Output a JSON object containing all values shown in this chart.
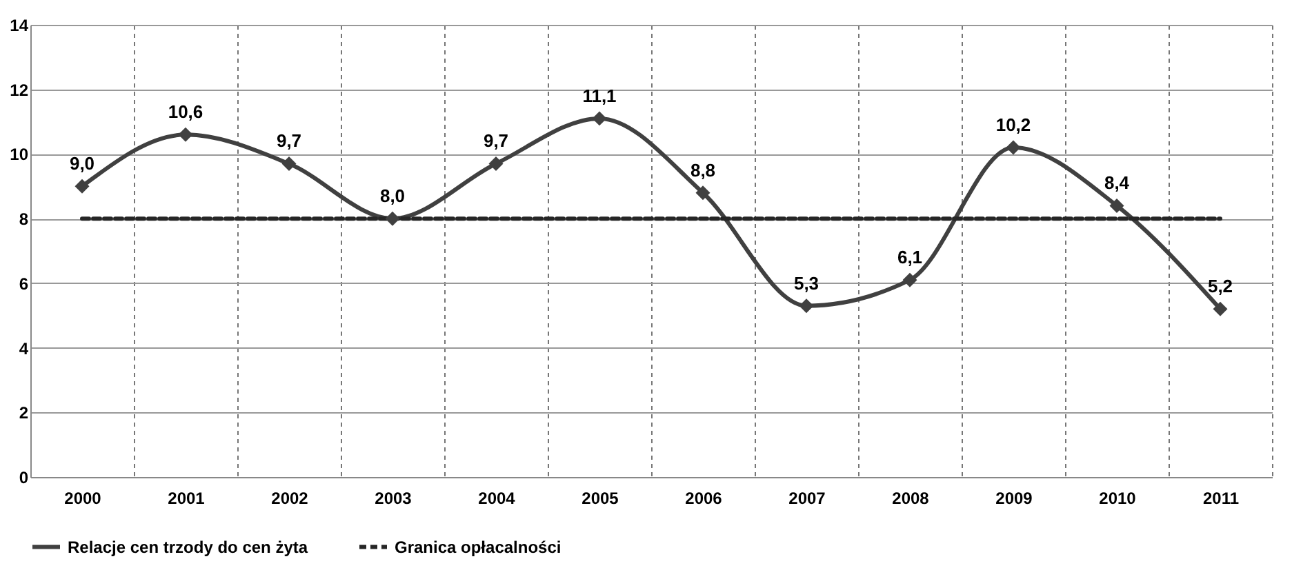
{
  "chart_data": {
    "type": "line",
    "categories": [
      "2000",
      "2001",
      "2002",
      "2003",
      "2004",
      "2005",
      "2006",
      "2007",
      "2008",
      "2009",
      "2010",
      "2011"
    ],
    "series": [
      {
        "name": "Relacje cen trzody do cen żyta",
        "color": "#404040",
        "marker": "diamond",
        "line_style": "solid",
        "values": [
          9.0,
          10.6,
          9.7,
          8.0,
          9.7,
          11.1,
          8.8,
          5.3,
          6.1,
          10.2,
          8.4,
          5.2
        ],
        "value_labels": [
          "9,0",
          "10,6",
          "9,7",
          "8,0",
          "9,7",
          "11,1",
          "8,8",
          "5,3",
          "6,1",
          "10,2",
          "8,4",
          "5,2"
        ]
      },
      {
        "name": "Granica opłacalności",
        "color": "#262626",
        "marker": "none",
        "line_style": "dashed",
        "values": [
          8,
          8,
          8,
          8,
          8,
          8,
          8,
          8,
          8,
          8,
          8,
          8
        ]
      }
    ],
    "ylim": [
      0,
      14
    ],
    "yticks": [
      0,
      2,
      4,
      6,
      8,
      10,
      12,
      14
    ],
    "grid": true,
    "legend": "bottom"
  }
}
